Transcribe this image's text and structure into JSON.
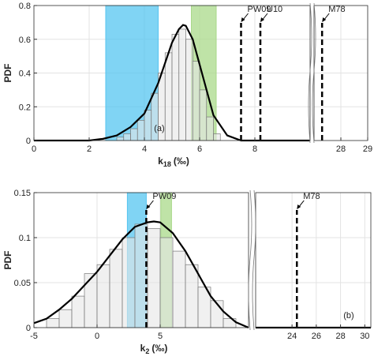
{
  "chart_data": [
    {
      "type": "histogram",
      "ylabel": "PDF",
      "xlabel": {
        "base": "k",
        "sub": "18",
        "unit": "(‰)"
      },
      "panel_label": "(a)",
      "ylim": [
        0,
        0.8
      ],
      "yticks": [
        0,
        0.2,
        0.4,
        0.6,
        0.8
      ],
      "grid": true,
      "segments": [
        {
          "xlim": [
            0,
            10
          ],
          "xticks": [
            0,
            2,
            4,
            6,
            8
          ]
        },
        {
          "xlim": [
            27,
            29
          ],
          "xticks": [
            28,
            29
          ]
        }
      ],
      "bins": [
        3.0,
        3.25,
        3.5,
        3.75,
        4.0,
        4.25,
        4.5,
        4.75,
        5.0,
        5.25,
        5.5,
        5.75,
        6.0,
        6.25,
        6.5,
        6.75
      ],
      "counts": [
        0.02,
        0.04,
        0.07,
        0.12,
        0.18,
        0.28,
        0.4,
        0.52,
        0.63,
        0.66,
        0.6,
        0.47,
        0.3,
        0.14,
        0.04
      ],
      "curves": [
        {
          "x": [
            0,
            2,
            2.5,
            3,
            3.5,
            4,
            4.5,
            5,
            5.25,
            5.4,
            5.5,
            5.75,
            6,
            6.5,
            7,
            7.5,
            10
          ],
          "y": [
            0,
            0,
            0.01,
            0.03,
            0.08,
            0.16,
            0.34,
            0.58,
            0.66,
            0.685,
            0.68,
            0.6,
            0.45,
            0.15,
            0.03,
            0,
            0
          ]
        }
      ],
      "bands": [
        {
          "range": [
            2.6,
            4.5
          ],
          "color": "#56c5f0"
        },
        {
          "range": [
            5.7,
            6.6
          ],
          "color": "#a9d98a"
        }
      ],
      "markers": [
        {
          "label": "PW09",
          "x": 7.5
        },
        {
          "label": "U10",
          "x": 8.2
        },
        {
          "label": "M78",
          "x": 27.3
        }
      ]
    },
    {
      "type": "histogram",
      "ylabel": "PDF",
      "xlabel": {
        "base": "k",
        "sub": "2",
        "unit": "(‰)"
      },
      "panel_label": "(b)",
      "ylim": [
        0,
        0.15
      ],
      "yticks": [
        0,
        0.05,
        0.1,
        0.15
      ],
      "grid": true,
      "segments": [
        {
          "xlim": [
            -5,
            12
          ],
          "xticks": [
            -5,
            0,
            5
          ]
        },
        {
          "xlim": [
            21,
            30.5
          ],
          "xticks": [
            24,
            26,
            28,
            30
          ]
        }
      ],
      "bins": [
        -4,
        -3,
        -2,
        -1,
        0,
        1,
        2,
        3,
        4,
        5,
        6,
        7,
        8,
        9,
        10,
        11
      ],
      "counts": [
        0.01,
        0.02,
        0.035,
        0.06,
        0.07,
        0.087,
        0.1,
        0.115,
        0.11,
        0.1,
        0.085,
        0.07,
        0.045,
        0.03,
        0.01
      ],
      "curves": [
        {
          "x": [
            -5,
            -4,
            -3,
            -2,
            -1,
            0,
            1,
            2,
            3,
            4,
            4.5,
            5,
            6,
            7,
            8,
            9,
            10,
            11,
            12
          ],
          "y": [
            0.005,
            0.01,
            0.02,
            0.032,
            0.047,
            0.062,
            0.08,
            0.098,
            0.112,
            0.117,
            0.118,
            0.117,
            0.105,
            0.085,
            0.06,
            0.035,
            0.018,
            0.006,
            0
          ]
        },
        {
          "x": [
            21,
            30.5
          ],
          "y": [
            0,
            0
          ]
        }
      ],
      "bands": [
        {
          "range": [
            2.4,
            3.9
          ],
          "color": "#56c5f0"
        },
        {
          "range": [
            5.05,
            5.9
          ],
          "color": "#a9d98a"
        }
      ],
      "markers": [
        {
          "label": "PW09",
          "x": 3.9
        },
        {
          "label": "M78",
          "x": 24.4
        }
      ]
    }
  ]
}
